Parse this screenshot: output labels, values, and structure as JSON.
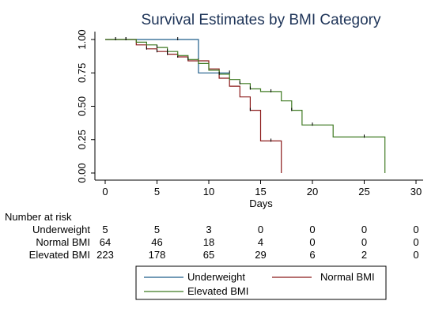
{
  "colors": {
    "axis": "#000000",
    "title": "#1e3458",
    "underweight": "#1f5d8a",
    "normal_bmi": "#8b1a1a",
    "elevated_bmi": "#3f7a22",
    "legend_border": "#000000"
  },
  "chart_data": {
    "type": "line",
    "title": "Survival Estimates by BMI Category",
    "xlabel": "Days",
    "ylabel": "",
    "xlim": [
      0,
      30
    ],
    "ylim": [
      0,
      1
    ],
    "x_ticks": [
      0,
      5,
      10,
      15,
      20,
      25,
      30
    ],
    "x_tick_labels": [
      "0",
      "5",
      "10",
      "15",
      "20",
      "25",
      "30"
    ],
    "y_ticks": [
      0,
      0.25,
      0.5,
      0.75,
      1.0
    ],
    "y_tick_labels": [
      "0.00",
      "0.25",
      "0.50",
      "0.75",
      "1.00"
    ],
    "grid": false,
    "legend_position": "bottom",
    "series": [
      {
        "name": "Underweight",
        "step": true,
        "points": [
          [
            0,
            1.0
          ],
          [
            9,
            1.0
          ],
          [
            9,
            0.75
          ],
          [
            12,
            0.75
          ],
          [
            12,
            0.75
          ]
        ],
        "censor": [
          7,
          11,
          12
        ]
      },
      {
        "name": "Normal BMI",
        "step": true,
        "points": [
          [
            0,
            1.0
          ],
          [
            3,
            1.0
          ],
          [
            3,
            0.96
          ],
          [
            4,
            0.96
          ],
          [
            4,
            0.93
          ],
          [
            5,
            0.93
          ],
          [
            5,
            0.91
          ],
          [
            6,
            0.91
          ],
          [
            6,
            0.89
          ],
          [
            7,
            0.89
          ],
          [
            7,
            0.87
          ],
          [
            8,
            0.87
          ],
          [
            8,
            0.84
          ],
          [
            10,
            0.84
          ],
          [
            10,
            0.78
          ],
          [
            11,
            0.78
          ],
          [
            11,
            0.71
          ],
          [
            12,
            0.71
          ],
          [
            12,
            0.65
          ],
          [
            13,
            0.65
          ],
          [
            13,
            0.57
          ],
          [
            14,
            0.57
          ],
          [
            14,
            0.47
          ],
          [
            15,
            0.47
          ],
          [
            15,
            0.24
          ],
          [
            17,
            0.24
          ],
          [
            17,
            0.0
          ]
        ],
        "censor": [
          1,
          2,
          4,
          5,
          6,
          7,
          9,
          10,
          14,
          16
        ]
      },
      {
        "name": "Elevated BMI",
        "step": true,
        "points": [
          [
            0,
            1.0
          ],
          [
            3,
            1.0
          ],
          [
            3,
            0.98
          ],
          [
            4,
            0.98
          ],
          [
            4,
            0.96
          ],
          [
            5,
            0.96
          ],
          [
            5,
            0.94
          ],
          [
            6,
            0.94
          ],
          [
            6,
            0.91
          ],
          [
            7,
            0.91
          ],
          [
            7,
            0.88
          ],
          [
            8,
            0.88
          ],
          [
            8,
            0.85
          ],
          [
            9,
            0.85
          ],
          [
            9,
            0.82
          ],
          [
            10,
            0.82
          ],
          [
            10,
            0.77
          ],
          [
            11,
            0.77
          ],
          [
            11,
            0.74
          ],
          [
            12,
            0.74
          ],
          [
            12,
            0.7
          ],
          [
            13,
            0.7
          ],
          [
            13,
            0.67
          ],
          [
            14,
            0.67
          ],
          [
            14,
            0.63
          ],
          [
            15,
            0.63
          ],
          [
            15,
            0.61
          ],
          [
            17,
            0.61
          ],
          [
            17,
            0.54
          ],
          [
            18,
            0.54
          ],
          [
            18,
            0.47
          ],
          [
            19,
            0.47
          ],
          [
            19,
            0.36
          ],
          [
            22,
            0.36
          ],
          [
            22,
            0.27
          ],
          [
            27,
            0.27
          ],
          [
            27,
            0.0
          ]
        ],
        "censor": [
          1,
          2,
          5,
          6,
          8,
          11,
          13,
          14,
          16,
          18,
          20,
          25
        ]
      }
    ],
    "risk_table": {
      "header": "Number at risk",
      "times": [
        0,
        5,
        10,
        15,
        20,
        25,
        30
      ],
      "rows": [
        {
          "label": "Underweight",
          "counts": [
            "5",
            "5",
            "3",
            "0",
            "0",
            "0",
            "0"
          ]
        },
        {
          "label": "Normal BMI",
          "counts": [
            "64",
            "46",
            "18",
            "4",
            "0",
            "0",
            "0"
          ]
        },
        {
          "label": "Elevated BMI",
          "counts": [
            "223",
            "178",
            "65",
            "29",
            "6",
            "2",
            "0"
          ]
        }
      ]
    }
  }
}
